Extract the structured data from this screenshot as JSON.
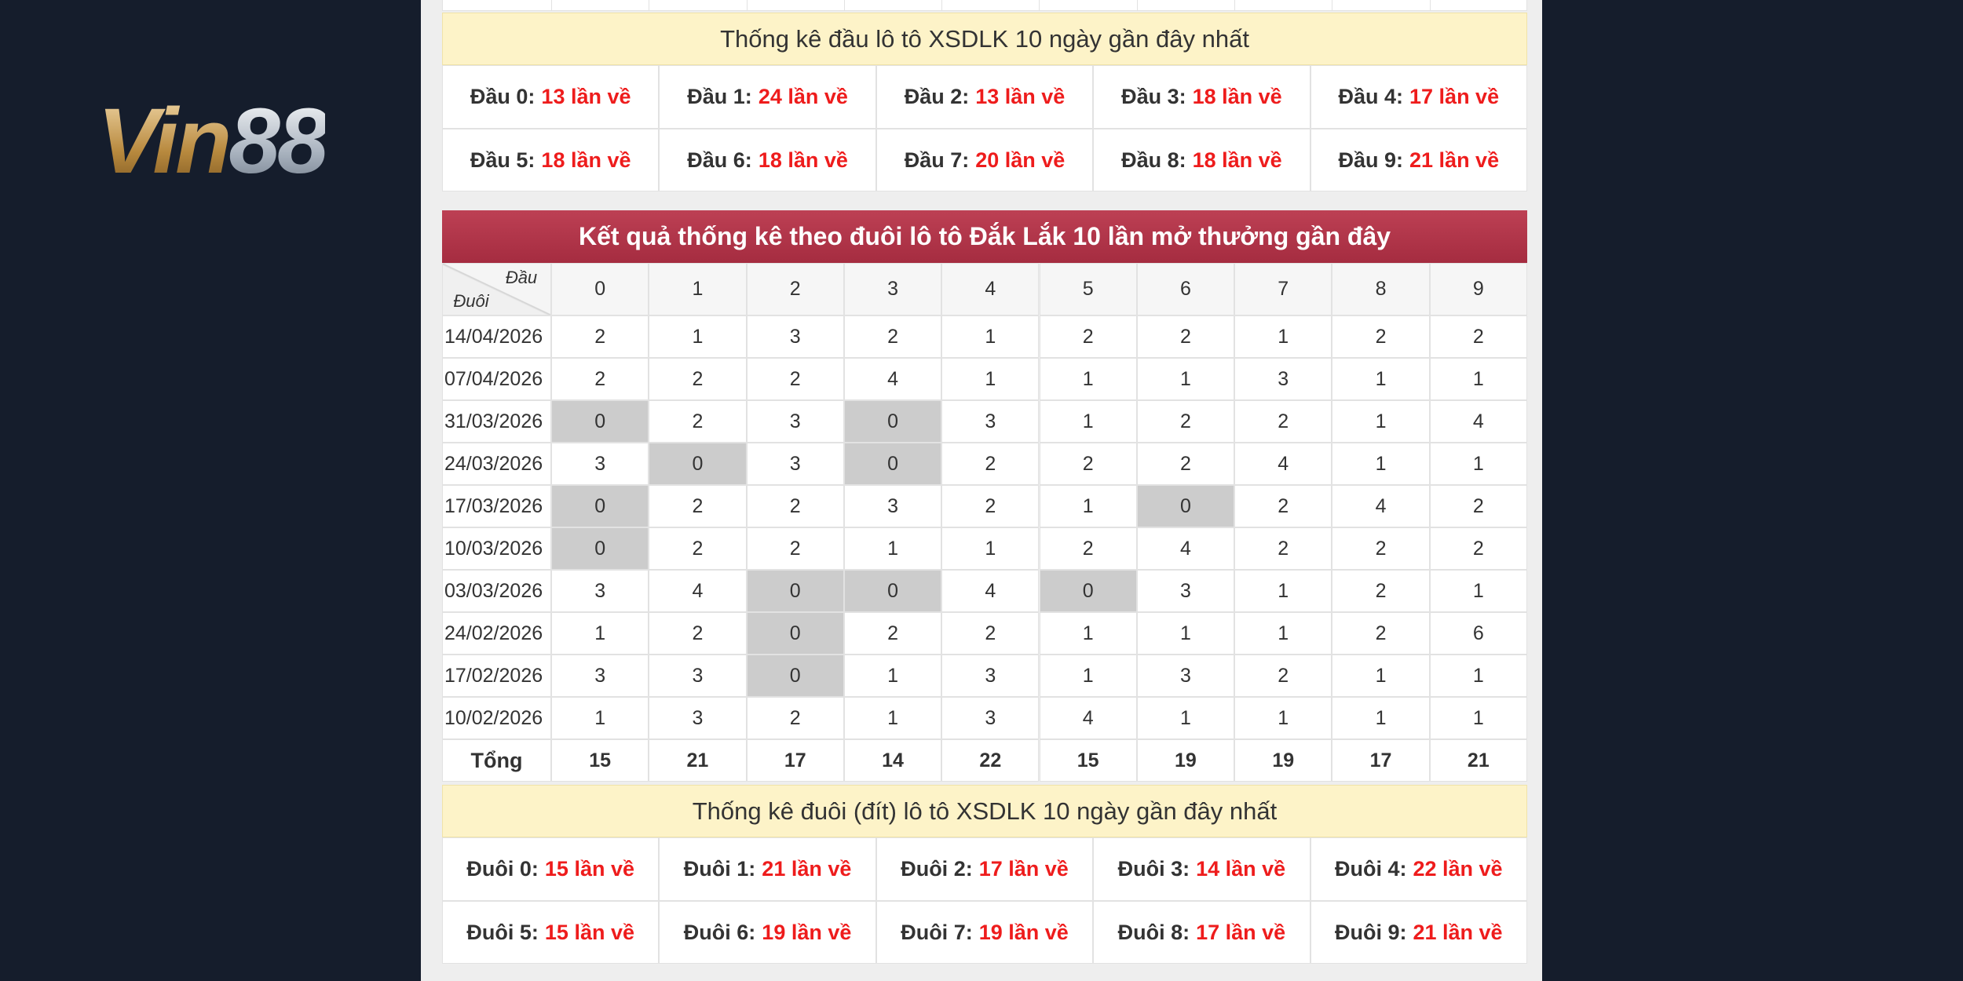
{
  "logo": {
    "part1": "Vin",
    "part2": "88"
  },
  "head_stats": {
    "title": "Thống kê đầu lô tô XSDLK 10 ngày gần đây nhất",
    "items": [
      {
        "label": "Đầu 0:",
        "value": "13 lần về"
      },
      {
        "label": "Đầu 1:",
        "value": "24 lần về"
      },
      {
        "label": "Đầu 2:",
        "value": "13 lần về"
      },
      {
        "label": "Đầu 3:",
        "value": "18 lần về"
      },
      {
        "label": "Đầu 4:",
        "value": "17 lần về"
      },
      {
        "label": "Đầu 5:",
        "value": "18 lần về"
      },
      {
        "label": "Đầu 6:",
        "value": "18 lần về"
      },
      {
        "label": "Đầu 7:",
        "value": "20 lần về"
      },
      {
        "label": "Đầu 8:",
        "value": "18 lần về"
      },
      {
        "label": "Đầu 9:",
        "value": "21 lần về"
      }
    ]
  },
  "tail_table": {
    "title": "Kết quả thống kê theo đuôi lô tô Đắk Lắk 10 lần mở thưởng gần đây",
    "corner_top": "Đầu",
    "corner_bottom": "Đuôi",
    "columns": [
      "0",
      "1",
      "2",
      "3",
      "4",
      "5",
      "6",
      "7",
      "8",
      "9"
    ],
    "rows": [
      {
        "date": "14/04/2026",
        "values": [
          2,
          1,
          3,
          2,
          1,
          2,
          2,
          1,
          2,
          2
        ]
      },
      {
        "date": "07/04/2026",
        "values": [
          2,
          2,
          2,
          4,
          1,
          1,
          1,
          3,
          1,
          1
        ]
      },
      {
        "date": "31/03/2026",
        "values": [
          0,
          2,
          3,
          0,
          3,
          1,
          2,
          2,
          1,
          4
        ]
      },
      {
        "date": "24/03/2026",
        "values": [
          3,
          0,
          3,
          0,
          2,
          2,
          2,
          4,
          1,
          1
        ]
      },
      {
        "date": "17/03/2026",
        "values": [
          0,
          2,
          2,
          3,
          2,
          1,
          0,
          2,
          4,
          2
        ]
      },
      {
        "date": "10/03/2026",
        "values": [
          0,
          2,
          2,
          1,
          1,
          2,
          4,
          2,
          2,
          2
        ]
      },
      {
        "date": "03/03/2026",
        "values": [
          3,
          4,
          0,
          0,
          4,
          0,
          3,
          1,
          2,
          1
        ]
      },
      {
        "date": "24/02/2026",
        "values": [
          1,
          2,
          0,
          2,
          2,
          1,
          1,
          1,
          2,
          6
        ]
      },
      {
        "date": "17/02/2026",
        "values": [
          3,
          3,
          0,
          1,
          3,
          1,
          3,
          2,
          1,
          1
        ]
      },
      {
        "date": "10/02/2026",
        "values": [
          1,
          3,
          2,
          1,
          3,
          4,
          1,
          1,
          1,
          1
        ]
      }
    ],
    "total": {
      "label": "Tổng",
      "values": [
        15,
        21,
        17,
        14,
        22,
        15,
        19,
        19,
        17,
        21
      ]
    }
  },
  "tail_stats": {
    "title": "Thống kê đuôi (đít) lô tô XSDLK 10 ngày gần đây nhất",
    "items": [
      {
        "label": "Đuôi 0:",
        "value": "15 lần về"
      },
      {
        "label": "Đuôi 1:",
        "value": "21 lần về"
      },
      {
        "label": "Đuôi 2:",
        "value": "17 lần về"
      },
      {
        "label": "Đuôi 3:",
        "value": "14 lần về"
      },
      {
        "label": "Đuôi 4:",
        "value": "22 lần về"
      },
      {
        "label": "Đuôi 5:",
        "value": "15 lần về"
      },
      {
        "label": "Đuôi 6:",
        "value": "19 lần về"
      },
      {
        "label": "Đuôi 7:",
        "value": "19 lần về"
      },
      {
        "label": "Đuôi 8:",
        "value": "17 lần về"
      },
      {
        "label": "Đuôi 9:",
        "value": "21 lần về"
      }
    ]
  }
}
